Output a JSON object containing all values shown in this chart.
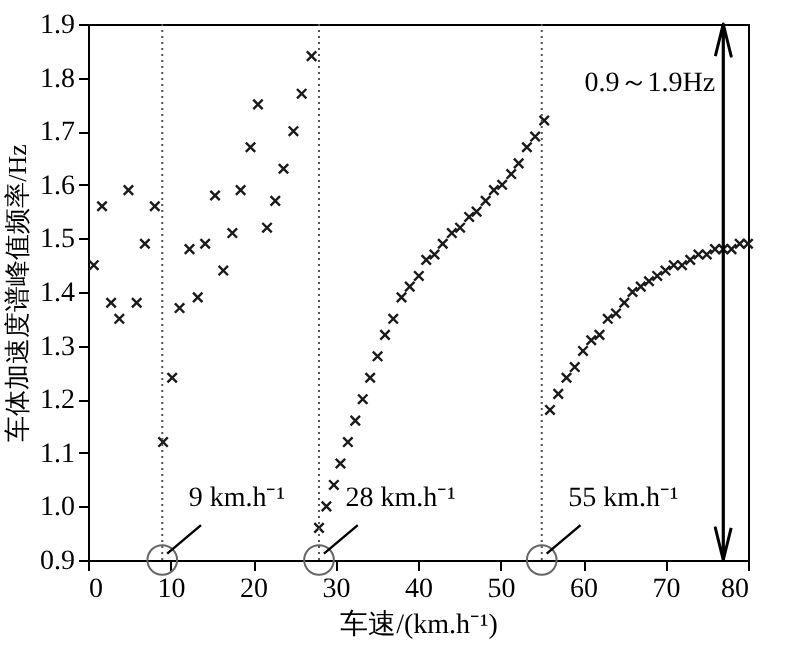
{
  "chart_data": {
    "type": "scatter",
    "xlabel": "车速/(km.h⁻¹)",
    "ylabel": "车体加速度谱峰值频率/Hz",
    "marker": "cross",
    "grid": false,
    "xlim": [
      0,
      80
    ],
    "xticks": [
      0,
      10,
      20,
      30,
      40,
      50,
      60,
      70,
      80
    ],
    "ylim": [
      0.9,
      1.9
    ],
    "yticks": [
      0.9,
      {
        "value": 1,
        "label": "1.0"
      },
      1.1,
      1.2,
      1.3,
      1.4,
      1.5,
      1.6,
      1.7,
      1.8,
      1.9
    ],
    "series": [
      {
        "color": "#1a1a1a",
        "x": [
          0.7,
          1.7,
          2.8,
          3.8,
          4.9,
          5.9,
          6.9,
          8.1,
          9.1,
          10.2,
          11.1,
          12.3,
          13.3,
          14.2,
          15.4,
          16.4,
          17.5,
          18.5,
          19.7,
          20.6,
          21.7,
          22.7,
          23.7,
          24.9,
          25.9,
          27.1,
          28.0,
          28.9,
          29.8,
          30.6,
          31.5,
          32.4,
          33.3,
          34.2,
          35.1,
          36.0,
          37.0,
          38.0,
          39.0,
          40.1,
          41.0,
          42.0,
          43.0,
          44.1,
          45.1,
          46.2,
          47.1,
          48.2,
          49.2,
          50.2,
          51.3,
          52.2,
          53.2,
          54.2,
          55.3,
          56.0,
          57.0,
          58.0,
          59.0,
          60.0,
          61.0,
          62.0,
          63.0,
          64.0,
          65.0,
          66.0,
          67.0,
          68.0,
          69.0,
          70.0,
          71.0,
          72.0,
          73.0,
          74.0,
          75.0,
          76.0,
          77.0,
          78.0,
          79.0,
          80.0
        ],
        "values": [
          1.45,
          1.56,
          1.38,
          1.35,
          1.59,
          1.38,
          1.49,
          1.56,
          1.12,
          1.24,
          1.37,
          1.48,
          1.39,
          1.49,
          1.58,
          1.44,
          1.51,
          1.59,
          1.67,
          1.75,
          1.52,
          1.57,
          1.63,
          1.7,
          1.77,
          1.84,
          0.96,
          1.0,
          1.04,
          1.08,
          1.12,
          1.16,
          1.2,
          1.24,
          1.28,
          1.32,
          1.35,
          1.39,
          1.41,
          1.43,
          1.46,
          1.47,
          1.49,
          1.51,
          1.52,
          1.54,
          1.55,
          1.57,
          1.59,
          1.6,
          1.62,
          1.64,
          1.67,
          1.69,
          1.72,
          1.18,
          1.21,
          1.24,
          1.26,
          1.29,
          1.31,
          1.32,
          1.35,
          1.36,
          1.38,
          1.4,
          1.41,
          1.42,
          1.43,
          1.44,
          1.45,
          1.45,
          1.46,
          1.47,
          1.47,
          1.48,
          1.48,
          1.48,
          1.49,
          1.49
        ]
      }
    ],
    "ref_lines": [
      {
        "axis": "x",
        "value": 9,
        "label": "9 km.h⁻¹",
        "line_style": "dotted"
      },
      {
        "axis": "x",
        "value": 28,
        "label": "28 km.h⁻¹",
        "line_style": "dotted"
      },
      {
        "axis": "x",
        "value": 55,
        "label": "55 km.h⁻¹",
        "line_style": "dotted"
      },
      {
        "axis": "x",
        "value": 77,
        "label": "0.9～1.9Hz",
        "line_style": "solid"
      }
    ]
  }
}
